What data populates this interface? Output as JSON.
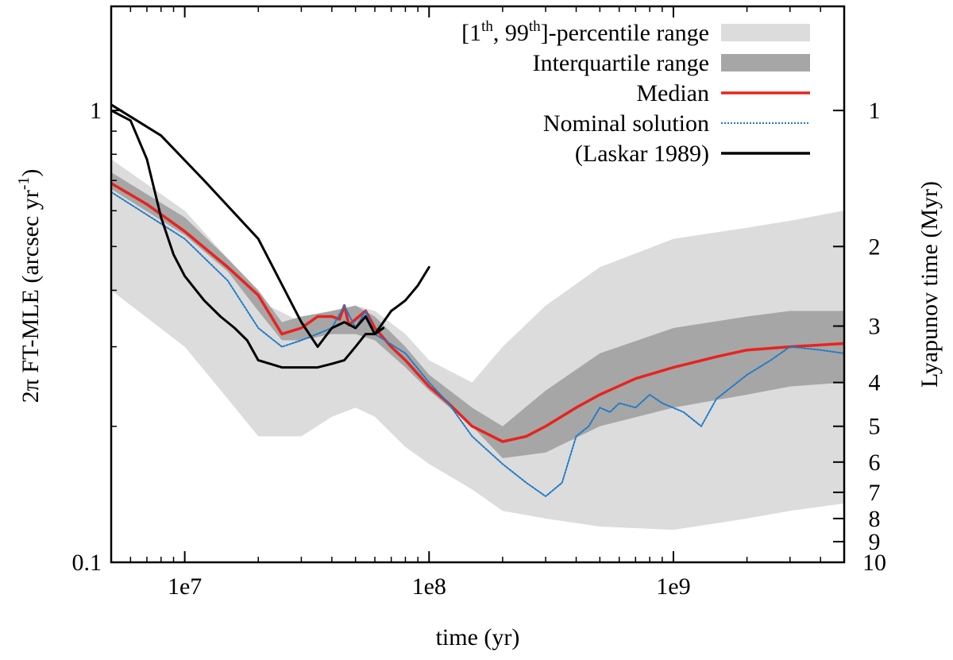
{
  "chart_data": {
    "type": "line",
    "title": "",
    "xlabel": "time (yr)",
    "ylabel": "2π FT-MLE (arcsec yr⁻¹)",
    "ylabel_parts": [
      "2π FT-MLE (arcsec yr",
      "-1",
      ")"
    ],
    "y2label": "Lyapunov time (Myr)",
    "x_scale": "log",
    "y_scale": "log",
    "xlim": [
      5000000,
      5000000000
    ],
    "ylim": [
      0.1,
      1.7
    ],
    "x_ticks": [
      {
        "value": 10000000,
        "label": "1e7"
      },
      {
        "value": 100000000,
        "label": "1e8"
      },
      {
        "value": 1000000000,
        "label": "1e9"
      }
    ],
    "y_ticks": [
      {
        "value": 1,
        "label": "1"
      },
      {
        "value": 0.1,
        "label": "0.1"
      }
    ],
    "y2_ticks": [
      {
        "myr": 1,
        "label": "1"
      },
      {
        "myr": 2,
        "label": "2"
      },
      {
        "myr": 3,
        "label": "3"
      },
      {
        "myr": 4,
        "label": "4"
      },
      {
        "myr": 5,
        "label": "5"
      },
      {
        "myr": 6,
        "label": "6"
      },
      {
        "myr": 7,
        "label": "7"
      },
      {
        "myr": 8,
        "label": "8"
      },
      {
        "myr": 9,
        "label": "9"
      },
      {
        "myr": 10,
        "label": "10"
      }
    ],
    "legend_position": "top-right",
    "legend": [
      {
        "key": "p1_99",
        "label_parts": [
          "[1",
          "th",
          ", 99",
          "th",
          "]-percentile range"
        ],
        "color": "#dcdcdc",
        "style": "band"
      },
      {
        "key": "iqr",
        "label_parts": [
          "Interquartile range"
        ],
        "color": "#a6a6a6",
        "style": "band"
      },
      {
        "key": "median",
        "label_parts": [
          "Median"
        ],
        "color": "#e8231e",
        "style": "solid"
      },
      {
        "key": "nominal",
        "label_parts": [
          "Nominal solution"
        ],
        "color": "#1e7ac8",
        "style": "dotted"
      },
      {
        "key": "laskar",
        "label_parts": [
          "(Laskar 1989)"
        ],
        "color": "#000000",
        "style": "solid"
      }
    ],
    "series": [
      {
        "name": "[1th, 99th]-percentile range",
        "key": "p1_99",
        "x": [
          5000000.0,
          10000000.0,
          15000000.0,
          20000000.0,
          30000000.0,
          40000000.0,
          50000000.0,
          60000000.0,
          80000000.0,
          100000000.0,
          150000000.0,
          200000000.0,
          300000000.0,
          500000000.0,
          1000000000.0,
          2000000000.0,
          3000000000.0,
          5000000000.0
        ],
        "lower": [
          0.4,
          0.3,
          0.23,
          0.19,
          0.19,
          0.21,
          0.22,
          0.21,
          0.18,
          0.165,
          0.145,
          0.13,
          0.125,
          0.12,
          0.118,
          0.125,
          0.13,
          0.135
        ],
        "upper": [
          0.78,
          0.6,
          0.47,
          0.38,
          0.34,
          0.36,
          0.37,
          0.36,
          0.32,
          0.28,
          0.25,
          0.3,
          0.37,
          0.45,
          0.52,
          0.55,
          0.57,
          0.6
        ]
      },
      {
        "name": "Interquartile range",
        "key": "iqr",
        "x": [
          5000000.0,
          10000000.0,
          15000000.0,
          20000000.0,
          25000000.0,
          30000000.0,
          40000000.0,
          50000000.0,
          60000000.0,
          80000000.0,
          100000000.0,
          150000000.0,
          200000000.0,
          300000000.0,
          500000000.0,
          1000000000.0,
          2000000000.0,
          3000000000.0,
          5000000000.0
        ],
        "lower": [
          0.67,
          0.53,
          0.44,
          0.36,
          0.31,
          0.31,
          0.32,
          0.32,
          0.31,
          0.27,
          0.24,
          0.2,
          0.17,
          0.175,
          0.2,
          0.22,
          0.235,
          0.245,
          0.25
        ],
        "upper": [
          0.73,
          0.58,
          0.47,
          0.4,
          0.34,
          0.35,
          0.36,
          0.37,
          0.35,
          0.3,
          0.26,
          0.22,
          0.2,
          0.24,
          0.29,
          0.33,
          0.35,
          0.36,
          0.36
        ]
      },
      {
        "name": "Median",
        "key": "median",
        "x": [
          5000000.0,
          7000000.0,
          10000000.0,
          15000000.0,
          20000000.0,
          25000000.0,
          30000000.0,
          35000000.0,
          40000000.0,
          43000000.0,
          45000000.0,
          47000000.0,
          50000000.0,
          55000000.0,
          60000000.0,
          70000000.0,
          80000000.0,
          100000000.0,
          120000000.0,
          150000000.0,
          200000000.0,
          250000000.0,
          300000000.0,
          400000000.0,
          500000000.0,
          700000000.0,
          1000000000.0,
          1500000000.0,
          2000000000.0,
          3000000000.0,
          5000000000.0
        ],
        "values": [
          0.69,
          0.62,
          0.54,
          0.45,
          0.39,
          0.32,
          0.33,
          0.35,
          0.35,
          0.345,
          0.37,
          0.335,
          0.345,
          0.36,
          0.33,
          0.3,
          0.28,
          0.245,
          0.225,
          0.2,
          0.185,
          0.19,
          0.2,
          0.22,
          0.235,
          0.255,
          0.27,
          0.285,
          0.295,
          0.3,
          0.305
        ]
      },
      {
        "name": "Nominal solution",
        "key": "nominal",
        "x": [
          5000000.0,
          10000000.0,
          15000000.0,
          20000000.0,
          25000000.0,
          30000000.0,
          40000000.0,
          45000000.0,
          50000000.0,
          55000000.0,
          60000000.0,
          80000000.0,
          100000000.0,
          120000000.0,
          150000000.0,
          200000000.0,
          250000000.0,
          300000000.0,
          350000000.0,
          400000000.0,
          450000000.0,
          500000000.0,
          550000000.0,
          600000000.0,
          700000000.0,
          800000000.0,
          900000000.0,
          1100000000.0,
          1300000000.0,
          1500000000.0,
          2000000000.0,
          2500000000.0,
          3000000000.0,
          4000000000.0,
          5000000000.0
        ],
        "values": [
          0.66,
          0.52,
          0.42,
          0.33,
          0.3,
          0.31,
          0.33,
          0.37,
          0.33,
          0.36,
          0.32,
          0.29,
          0.25,
          0.225,
          0.19,
          0.165,
          0.15,
          0.14,
          0.15,
          0.19,
          0.2,
          0.22,
          0.215,
          0.225,
          0.22,
          0.235,
          0.225,
          0.215,
          0.2,
          0.23,
          0.26,
          0.28,
          0.3,
          0.295,
          0.29
        ]
      },
      {
        "name": "(Laskar 1989) upper",
        "key": "laskar",
        "x": [
          5000000.0,
          8000000.0,
          12000000.0,
          20000000.0,
          30000000.0,
          35000000.0,
          40000000.0,
          45000000.0,
          50000000.0,
          55000000.0,
          60000000.0,
          65000000.0,
          70000000.0,
          75000000.0,
          80000000.0,
          90000000.0,
          100000000.0
        ],
        "values": [
          1.03,
          0.88,
          0.7,
          0.52,
          0.34,
          0.3,
          0.33,
          0.34,
          0.33,
          0.35,
          0.32,
          0.34,
          0.36,
          0.37,
          0.38,
          0.41,
          0.45
        ]
      },
      {
        "name": "(Laskar 1989) lower",
        "key": "laskar",
        "x": [
          5000000.0,
          6000000.0,
          7000000.0,
          8000000.0,
          9000000.0,
          10000000.0,
          12000000.0,
          14000000.0,
          16000000.0,
          18000000.0,
          20000000.0,
          25000000.0,
          30000000.0,
          35000000.0,
          40000000.0,
          45000000.0,
          50000000.0,
          55000000.0,
          60000000.0,
          65000000.0
        ],
        "values": [
          1.0,
          0.95,
          0.78,
          0.58,
          0.48,
          0.43,
          0.38,
          0.35,
          0.33,
          0.31,
          0.28,
          0.27,
          0.27,
          0.27,
          0.275,
          0.28,
          0.3,
          0.32,
          0.32,
          0.33
        ]
      }
    ]
  }
}
